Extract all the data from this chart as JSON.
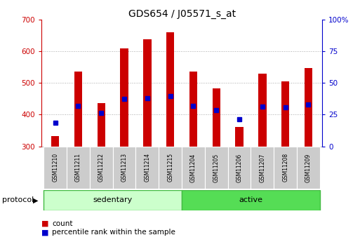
{
  "title": "GDS654 / J05571_s_at",
  "samples": [
    "GSM11210",
    "GSM11211",
    "GSM11212",
    "GSM11213",
    "GSM11214",
    "GSM11215",
    "GSM11204",
    "GSM11205",
    "GSM11206",
    "GSM11207",
    "GSM11208",
    "GSM11209"
  ],
  "bar_bottom": 300,
  "bar_tops": [
    333,
    535,
    437,
    608,
    637,
    660,
    535,
    483,
    362,
    528,
    505,
    547
  ],
  "percentile_values": [
    375,
    427,
    405,
    449,
    451,
    459,
    427,
    414,
    385,
    425,
    424,
    432
  ],
  "ylim_left": [
    300,
    700
  ],
  "ylim_right": [
    0,
    100
  ],
  "yticks_left": [
    300,
    400,
    500,
    600,
    700
  ],
  "yticks_right": [
    0,
    25,
    50,
    75,
    100
  ],
  "bar_color": "#cc0000",
  "blue_color": "#0000cc",
  "grid_color": "#aaaaaa",
  "bg_color": "#ffffff",
  "sedentary_color": "#ccffcc",
  "active_color": "#55dd55",
  "tick_label_bg": "#cccccc",
  "sedentary_label": "sedentary",
  "active_label": "active",
  "protocol_label": "protocol",
  "legend_count": "count",
  "legend_pct": "percentile rank within the sample",
  "group_boundary": 6,
  "title_fontsize": 10,
  "tick_fontsize": 7.5,
  "sample_fontsize": 5.5,
  "proto_fontsize": 8,
  "legend_fontsize": 7.5,
  "bar_width": 0.35
}
